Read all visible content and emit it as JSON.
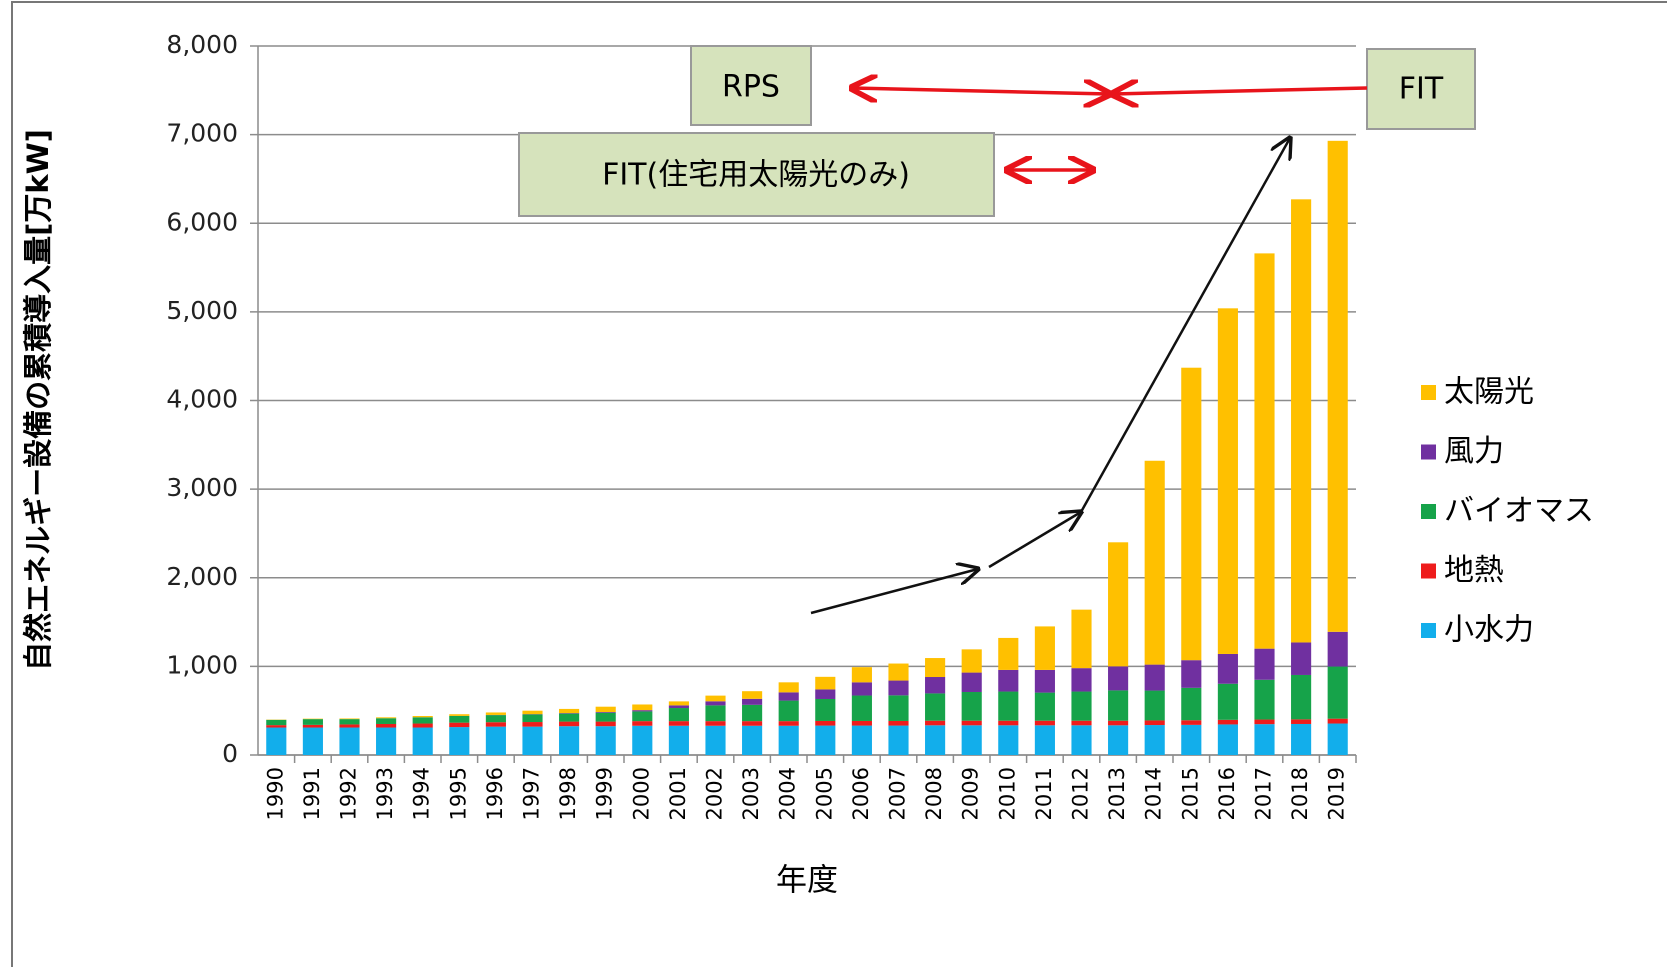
{
  "chart_data": {
    "type": "stacked_bar",
    "y_label": "自然エネルギー設備の累積導入量[万kW]",
    "x_label": "年度",
    "annotations": [
      "RPS",
      "FIT(住宅用太陽光のみ)",
      "FIT"
    ],
    "categories": [
      "1990",
      "1991",
      "1992",
      "1993",
      "1994",
      "1995",
      "1996",
      "1997",
      "1998",
      "1999",
      "2000",
      "2001",
      "2002",
      "2003",
      "2004",
      "2005",
      "2006",
      "2007",
      "2008",
      "2009",
      "2010",
      "2011",
      "2012",
      "2013",
      "2014",
      "2015",
      "2016",
      "2017",
      "2018",
      "2019"
    ],
    "series": [
      {
        "name": "小水力",
        "color": "#12aeeb",
        "values": [
          310,
          310,
          310,
          310,
          310,
          315,
          320,
          320,
          325,
          325,
          330,
          330,
          330,
          330,
          330,
          332,
          332,
          332,
          335,
          335,
          335,
          335,
          335,
          335,
          338,
          340,
          345,
          348,
          350,
          355
        ]
      },
      {
        "name": "地熱",
        "color": "#ee1c1c",
        "values": [
          27,
          30,
          35,
          40,
          45,
          50,
          50,
          52,
          52,
          52,
          52,
          52,
          52,
          52,
          52,
          52,
          52,
          52,
          52,
          52,
          52,
          52,
          52,
          52,
          52,
          52,
          52,
          52,
          52,
          55
        ]
      },
      {
        "name": "バイオマス",
        "color": "#16a34a",
        "values": [
          60,
          65,
          60,
          65,
          70,
          75,
          80,
          85,
          90,
          100,
          110,
          148,
          178,
          184,
          232,
          248,
          287,
          289,
          308,
          324,
          329,
          317,
          329,
          342,
          337,
          366,
          407,
          449,
          501,
          588
        ]
      },
      {
        "name": "風力",
        "color": "#7030a0",
        "values": [
          0,
          0,
          0,
          0,
          1,
          1,
          2,
          4,
          6,
          8,
          14,
          30,
          46,
          68,
          93,
          108,
          149,
          167,
          185,
          219,
          244,
          256,
          264,
          271,
          293,
          312,
          336,
          351,
          367,
          392
        ]
      },
      {
        "name": "太陽光",
        "color": "#ffc000",
        "values": [
          3,
          5,
          7,
          10,
          14,
          19,
          28,
          39,
          47,
          60,
          64,
          45,
          64,
          86,
          113,
          142,
          171,
          192,
          214,
          262,
          361,
          491,
          660,
          1400,
          2300,
          3300,
          3900,
          4460,
          5000,
          5540
        ]
      }
    ],
    "ylim": [
      0,
      8000
    ],
    "yticks": [
      0,
      {
        "value": 1000,
        "label": "1,000"
      },
      {
        "value": 2000,
        "label": "2,000"
      },
      {
        "value": 3000,
        "label": "3,000"
      },
      {
        "value": 4000,
        "label": "4,000"
      },
      {
        "value": 5000,
        "label": "5,000"
      },
      {
        "value": 6000,
        "label": "6,000"
      },
      {
        "value": 7000,
        "label": "7,000"
      },
      {
        "value": 8000,
        "label": "8,000"
      }
    ],
    "grid": true
  }
}
